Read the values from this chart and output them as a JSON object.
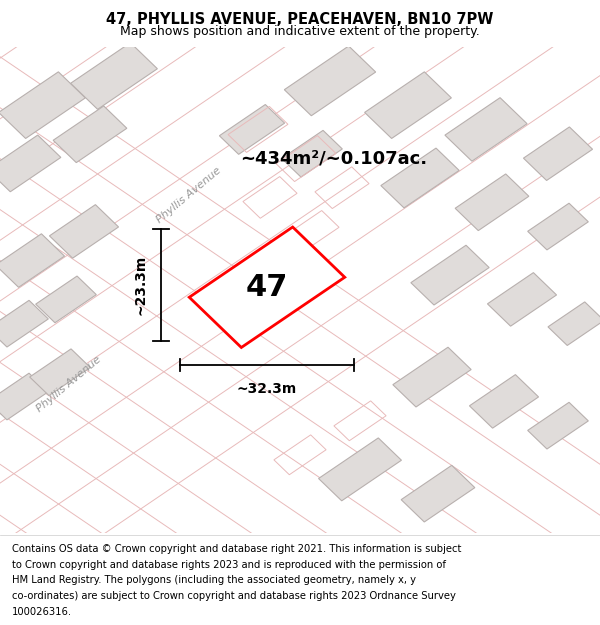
{
  "title": "47, PHYLLIS AVENUE, PEACEHAVEN, BN10 7PW",
  "subtitle": "Map shows position and indicative extent of the property.",
  "footer_lines": [
    "Contains OS data © Crown copyright and database right 2021. This information is subject",
    "to Crown copyright and database rights 2023 and is reproduced with the permission of",
    "HM Land Registry. The polygons (including the associated geometry, namely x, y",
    "co-ordinates) are subject to Crown copyright and database rights 2023 Ordnance Survey",
    "100026316."
  ],
  "area_label": "~434m²/~0.107ac.",
  "number_label": "47",
  "dim_width": "~32.3m",
  "dim_height": "~23.3m",
  "road_label1": "Phyllis Avenue",
  "road_label2": "Phyllis Avenue",
  "map_bg": "#efedec",
  "block_fill": "#e0dcda",
  "block_stroke": "#b8b0ae",
  "highlight_stroke": "#ff0000",
  "road_line_color": "#e8baba",
  "title_fontsize": 10.5,
  "subtitle_fontsize": 9,
  "footer_fontsize": 7.2,
  "number_fontsize": 22,
  "area_fontsize": 13,
  "road_fontsize": 8
}
